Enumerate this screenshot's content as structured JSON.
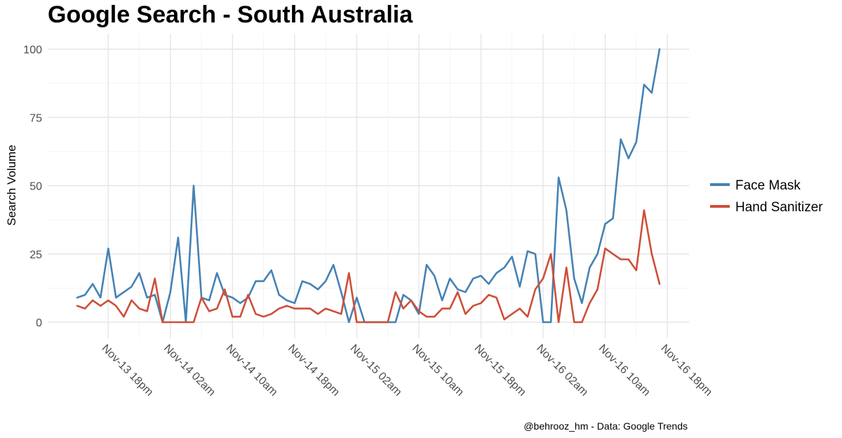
{
  "chart_data": {
    "type": "line",
    "title": "Google Search - South Australia",
    "xlabel": "",
    "ylabel": "Search Volume",
    "ylim": [
      0,
      100
    ],
    "yticks": [
      0,
      25,
      50,
      75,
      100
    ],
    "xtick_labels": [
      "Nov-13 18pm",
      "Nov-14 02am",
      "Nov-14 10am",
      "Nov-14 18pm",
      "Nov-15 02am",
      "Nov-15 10am",
      "Nov-15 18pm",
      "Nov-16 02am",
      "Nov-16 10am",
      "Nov-16 18pm"
    ],
    "hours_per_tick": 8,
    "x_start_offset_hours": -4,
    "legend_position": "right",
    "caption": "@behrooz_hm - Data: Google Trends",
    "series": [
      {
        "name": "Face Mask",
        "color": "#4682B4",
        "values": [
          9,
          10,
          14,
          9,
          27,
          9,
          11,
          13,
          18,
          9,
          10,
          0,
          11,
          31,
          0,
          50,
          9,
          8,
          18,
          10,
          9,
          7,
          9,
          15,
          15,
          19,
          10,
          8,
          7,
          15,
          14,
          12,
          15,
          21,
          11,
          0,
          9,
          0,
          0,
          0,
          0,
          0,
          10,
          8,
          3,
          21,
          17,
          8,
          16,
          12,
          11,
          16,
          17,
          14,
          18,
          20,
          24,
          13,
          26,
          25,
          0,
          0,
          53,
          41,
          16,
          7,
          20,
          25,
          36,
          38,
          67,
          60,
          66,
          87,
          84,
          100
        ]
      },
      {
        "name": "Hand Sanitizer",
        "color": "#CD4F39",
        "values": [
          6,
          5,
          8,
          6,
          8,
          6,
          2,
          8,
          5,
          4,
          16,
          0,
          0,
          0,
          0,
          0,
          9,
          4,
          5,
          12,
          2,
          2,
          10,
          3,
          2,
          3,
          5,
          6,
          5,
          5,
          5,
          3,
          5,
          4,
          3,
          18,
          0,
          0,
          0,
          0,
          0,
          11,
          5,
          8,
          4,
          2,
          2,
          5,
          5,
          11,
          3,
          6,
          7,
          10,
          9,
          1,
          3,
          5,
          2,
          12,
          16,
          25,
          0,
          20,
          0,
          0,
          7,
          12,
          27,
          25,
          23,
          23,
          19,
          41,
          25,
          14
        ]
      }
    ]
  }
}
